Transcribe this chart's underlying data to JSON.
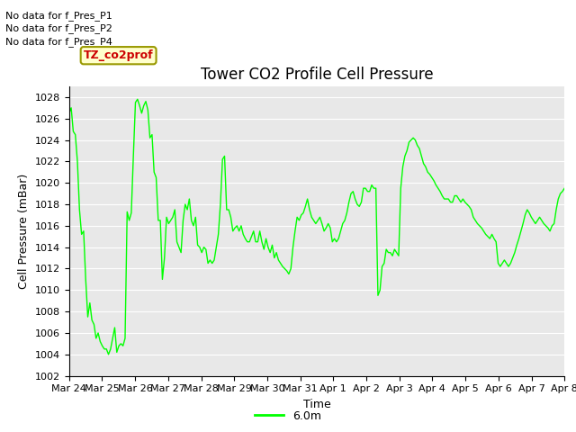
{
  "title": "Tower CO2 Profile Cell Pressure",
  "ylabel": "Cell Pressure (mBar)",
  "xlabel": "Time",
  "bg_color": "#e8e8e8",
  "line_color": "#00ff00",
  "ylim": [
    1002,
    1029
  ],
  "yticks": [
    1002,
    1004,
    1006,
    1008,
    1010,
    1012,
    1014,
    1016,
    1018,
    1020,
    1022,
    1024,
    1026,
    1028
  ],
  "x_labels": [
    "Mar 24",
    "Mar 25",
    "Mar 26",
    "Mar 27",
    "Mar 28",
    "Mar 29",
    "Mar 30",
    "Mar 31",
    "Apr 1",
    "Apr 2",
    "Apr 3",
    "Apr 4",
    "Apr 5",
    "Apr 6",
    "Apr 7",
    "Apr 8"
  ],
  "no_data_labels": [
    "No data for f_Pres_P1",
    "No data for f_Pres_P2",
    "No data for f_Pres_P4"
  ],
  "legend_label": "6.0m",
  "legend_box_color": "#ffffcc",
  "legend_box_edge": "#999900",
  "legend_text_color": "#cc0000",
  "title_fontsize": 12,
  "axis_label_fontsize": 9,
  "tick_fontsize": 8,
  "no_data_fontsize": 8,
  "y_data": [
    1026.5,
    1027.0,
    1024.8,
    1024.5,
    1022.0,
    1017.5,
    1015.2,
    1015.5,
    1011.0,
    1007.5,
    1008.8,
    1007.2,
    1006.8,
    1005.5,
    1006.0,
    1005.2,
    1004.8,
    1004.5,
    1004.5,
    1004.0,
    1004.5,
    1005.5,
    1006.5,
    1004.2,
    1004.8,
    1005.0,
    1004.8,
    1005.5,
    1017.3,
    1016.5,
    1017.2,
    1022.5,
    1027.5,
    1027.8,
    1027.2,
    1026.5,
    1027.2,
    1027.6,
    1026.8,
    1024.2,
    1024.5,
    1021.0,
    1020.5,
    1016.5,
    1016.5,
    1011.0,
    1013.0,
    1016.8,
    1016.2,
    1016.5,
    1016.8,
    1017.5,
    1014.5,
    1014.0,
    1013.5,
    1016.5,
    1018.0,
    1017.5,
    1018.5,
    1016.5,
    1016.0,
    1016.8,
    1014.2,
    1014.0,
    1013.5,
    1014.0,
    1013.8,
    1012.5,
    1012.8,
    1012.5,
    1012.8,
    1014.0,
    1015.2,
    1018.0,
    1022.2,
    1022.5,
    1017.5,
    1017.5,
    1016.8,
    1015.5,
    1015.8,
    1016.0,
    1015.5,
    1016.0,
    1015.2,
    1014.8,
    1014.5,
    1014.5,
    1015.0,
    1015.5,
    1014.5,
    1014.5,
    1015.5,
    1014.5,
    1013.8,
    1014.8,
    1014.0,
    1013.5,
    1014.2,
    1013.0,
    1013.5,
    1012.8,
    1012.5,
    1012.2,
    1012.0,
    1011.8,
    1011.5,
    1012.0,
    1014.0,
    1015.5,
    1016.8,
    1016.5,
    1017.0,
    1017.2,
    1017.8,
    1018.5,
    1017.5,
    1016.8,
    1016.5,
    1016.2,
    1016.5,
    1016.8,
    1016.2,
    1015.5,
    1015.8,
    1016.2,
    1015.8,
    1014.5,
    1014.8,
    1014.5,
    1014.8,
    1015.5,
    1016.2,
    1016.5,
    1017.2,
    1018.2,
    1019.0,
    1019.2,
    1018.5,
    1018.0,
    1017.8,
    1018.2,
    1019.5,
    1019.5,
    1019.2,
    1019.2,
    1019.8,
    1019.5,
    1019.5,
    1009.5,
    1010.0,
    1012.2,
    1012.5,
    1013.8,
    1013.5,
    1013.5,
    1013.2,
    1013.8,
    1013.5,
    1013.2,
    1019.5,
    1021.5,
    1022.5,
    1023.0,
    1023.8,
    1024.0,
    1024.2,
    1024.0,
    1023.5,
    1023.2,
    1022.5,
    1021.8,
    1021.5,
    1021.0,
    1020.8,
    1020.5,
    1020.2,
    1019.8,
    1019.5,
    1019.2,
    1018.8,
    1018.5,
    1018.5,
    1018.5,
    1018.2,
    1018.2,
    1018.8,
    1018.8,
    1018.5,
    1018.2,
    1018.5,
    1018.2,
    1018.0,
    1017.8,
    1017.5,
    1016.8,
    1016.5,
    1016.2,
    1016.0,
    1015.8,
    1015.5,
    1015.2,
    1015.0,
    1014.8,
    1015.2,
    1014.8,
    1014.5,
    1012.5,
    1012.2,
    1012.5,
    1012.8,
    1012.5,
    1012.2,
    1012.5,
    1013.0,
    1013.5,
    1014.2,
    1014.8,
    1015.5,
    1016.2,
    1017.0,
    1017.5,
    1017.2,
    1016.8,
    1016.5,
    1016.2,
    1016.5,
    1016.8,
    1016.5,
    1016.2,
    1016.0,
    1015.8,
    1015.5,
    1016.0,
    1016.2,
    1017.5,
    1018.5,
    1019.0,
    1019.2,
    1019.5
  ]
}
